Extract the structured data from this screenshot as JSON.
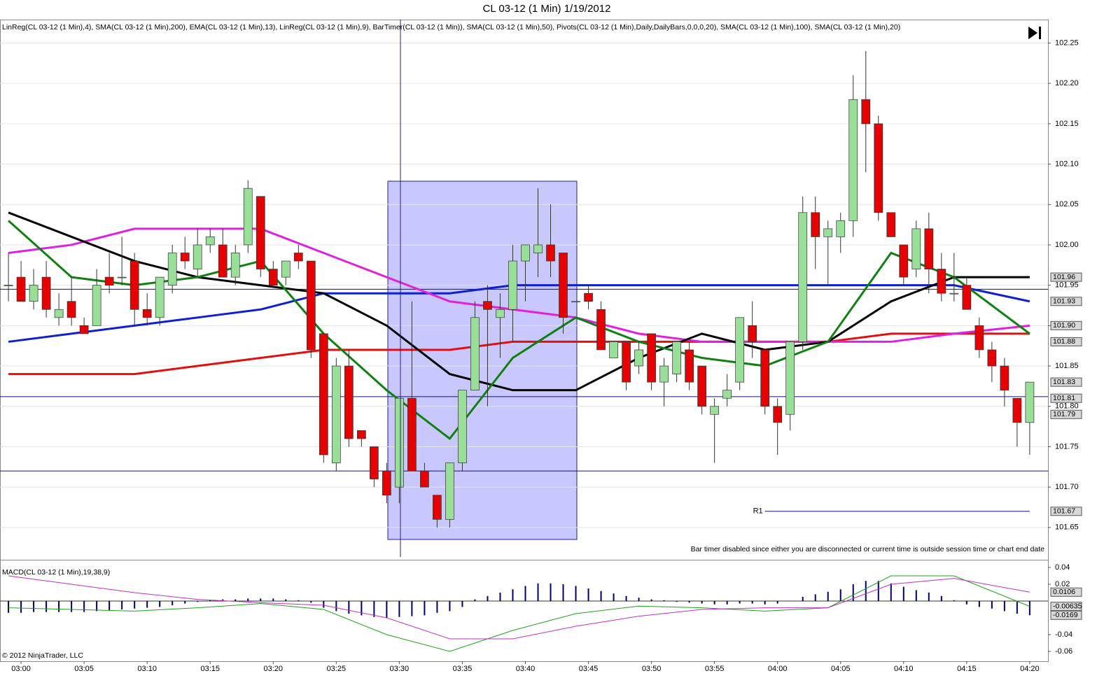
{
  "title": "CL 03-12 (1 Min)  1/19/2012",
  "indicators": "LinReg(CL 03-12 (1 Min),4), SMA(CL 03-12 (1 Min),200), EMA(CL 03-12 (1 Min),13), LinReg(CL 03-12 (1 Min),9), BarTimer(CL 03-12 (1 Min)), SMA(CL 03-12 (1 Min),50), Pivots(CL 03-12 (1 Min),Daily,DailyBars,0,0,0,20), SMA(CL 03-12 (1 Min),100), SMA(CL 03-12 (1 Min),20)",
  "notice": "Bar timer disabled since either you are disconnected or current time is outside session time or chart end date",
  "copyright": "© 2012 NinjaTrader, LLC",
  "chart_data": [
    {
      "type": "candlestick",
      "up_color": "#98e098",
      "down_color": "#e80000",
      "grid": true,
      "xlim": [
        -1.67,
        81.45
      ],
      "ylim": [
        101.61,
        102.279
      ],
      "xticks": [
        {
          "value": 0,
          "label": "03:00"
        },
        {
          "value": 5,
          "label": "03:05"
        },
        {
          "value": 10,
          "label": "03:10"
        },
        {
          "value": 15,
          "label": "03:15"
        },
        {
          "value": 20,
          "label": "03:20"
        },
        {
          "value": 25,
          "label": "03:25"
        },
        {
          "value": 30,
          "label": "03:30"
        },
        {
          "value": 35,
          "label": "03:35"
        },
        {
          "value": 40,
          "label": "03:40"
        },
        {
          "value": 45,
          "label": "03:45"
        },
        {
          "value": 50,
          "label": "03:50"
        },
        {
          "value": 55,
          "label": "03:55"
        },
        {
          "value": 60,
          "label": "04:00"
        },
        {
          "value": 65,
          "label": "04:05"
        },
        {
          "value": 70,
          "label": "04:10"
        },
        {
          "value": 75,
          "label": "04:15"
        },
        {
          "value": 80,
          "label": "04:20"
        }
      ],
      "yticks": [
        101.65,
        {
          "value": 101.7,
          "label": "101.70"
        },
        101.75,
        {
          "value": 101.8,
          "label": "101.80"
        },
        101.85,
        {
          "value": 101.9,
          "label": "101.90"
        },
        101.95,
        {
          "value": 102,
          "label": "102.00"
        },
        102.05,
        {
          "value": 102.1,
          "label": "102.10"
        },
        102.15,
        {
          "value": 102.2,
          "label": "102.20"
        },
        102.25
      ],
      "x": [
        -1,
        0,
        1,
        2,
        3,
        4,
        5,
        6,
        7,
        8,
        9,
        10,
        11,
        12,
        13,
        14,
        15,
        16,
        17,
        18,
        19,
        20,
        21,
        22,
        23,
        24,
        25,
        26,
        27,
        28,
        29,
        30,
        31,
        32,
        33,
        34,
        35,
        36,
        37,
        38,
        39,
        40,
        41,
        42,
        43,
        44,
        45,
        46,
        47,
        48,
        49,
        50,
        51,
        52,
        53,
        54,
        55,
        56,
        57,
        58,
        59,
        60,
        61,
        62,
        63,
        64,
        65,
        66,
        67,
        68,
        69,
        70,
        71,
        72,
        73,
        74,
        75,
        76,
        77,
        78,
        79,
        80
      ],
      "open": [
        101.95,
        101.96,
        101.93,
        101.96,
        101.91,
        101.93,
        101.9,
        101.9,
        101.96,
        101.96,
        101.98,
        101.92,
        101.91,
        101.95,
        101.99,
        101.97,
        102.0,
        102.0,
        101.96,
        102.0,
        102.06,
        101.97,
        101.96,
        101.99,
        101.98,
        101.89,
        101.73,
        101.85,
        101.77,
        101.75,
        101.72,
        101.7,
        101.81,
        101.72,
        101.69,
        101.66,
        101.73,
        101.82,
        101.93,
        101.91,
        101.92,
        101.98,
        101.99,
        102.0,
        101.99,
        101.93,
        101.94,
        101.92,
        101.86,
        101.88,
        101.85,
        101.89,
        101.83,
        101.84,
        101.87,
        101.85,
        101.79,
        101.81,
        101.83,
        101.9,
        101.87,
        101.8,
        101.79,
        101.88,
        102.04,
        102.01,
        102.01,
        102.03,
        102.18,
        102.15,
        102.04,
        102.0,
        101.97,
        102.02,
        101.97,
        101.94,
        101.95,
        101.9,
        101.87,
        101.85,
        101.81,
        101.78
      ],
      "high": [
        101.99,
        101.98,
        101.97,
        101.98,
        101.94,
        101.96,
        101.91,
        101.97,
        101.99,
        102.01,
        101.99,
        101.94,
        101.96,
        102.0,
        102.01,
        102.02,
        102.02,
        102.02,
        102.0,
        102.08,
        102.06,
        101.98,
        101.98,
        102.0,
        101.98,
        101.89,
        101.86,
        101.87,
        101.77,
        101.75,
        101.73,
        101.81,
        101.93,
        101.73,
        101.69,
        101.73,
        101.82,
        101.93,
        101.95,
        101.94,
        102.0,
        102.0,
        102.07,
        102.05,
        101.99,
        101.93,
        101.95,
        101.93,
        101.88,
        101.88,
        101.88,
        101.89,
        101.86,
        101.88,
        101.88,
        101.85,
        101.81,
        101.84,
        101.91,
        101.93,
        101.87,
        101.81,
        101.88,
        102.06,
        102.06,
        102.03,
        102.04,
        102.21,
        102.24,
        102.16,
        102.04,
        102.0,
        102.03,
        102.04,
        101.99,
        101.99,
        101.96,
        101.91,
        101.88,
        101.86,
        101.81,
        101.83
      ],
      "low": [
        101.93,
        101.93,
        101.92,
        101.91,
        101.9,
        101.9,
        101.89,
        101.9,
        101.94,
        101.95,
        101.9,
        101.9,
        101.9,
        101.94,
        101.97,
        101.96,
        101.99,
        101.96,
        101.95,
        101.99,
        101.96,
        101.95,
        101.95,
        101.97,
        101.86,
        101.73,
        101.72,
        101.75,
        101.75,
        101.7,
        101.68,
        101.68,
        101.72,
        101.7,
        101.65,
        101.65,
        101.72,
        101.82,
        101.8,
        101.86,
        101.88,
        101.93,
        101.96,
        101.96,
        101.89,
        101.93,
        101.92,
        101.87,
        101.86,
        101.82,
        101.84,
        101.82,
        101.8,
        101.83,
        101.82,
        101.79,
        101.73,
        101.8,
        101.82,
        101.86,
        101.79,
        101.74,
        101.77,
        101.87,
        101.97,
        101.95,
        101.99,
        102.01,
        102.09,
        102.03,
        102.01,
        101.95,
        101.96,
        101.94,
        101.93,
        101.93,
        101.92,
        101.86,
        101.83,
        101.8,
        101.75,
        101.74
      ],
      "close": [
        101.95,
        101.93,
        101.95,
        101.92,
        101.92,
        101.91,
        101.89,
        101.95,
        101.95,
        101.96,
        101.92,
        101.91,
        101.96,
        101.99,
        101.98,
        102.0,
        102.01,
        101.96,
        101.99,
        102.07,
        101.97,
        101.95,
        101.98,
        101.98,
        101.87,
        101.74,
        101.85,
        101.76,
        101.76,
        101.71,
        101.69,
        101.81,
        101.72,
        101.7,
        101.66,
        101.73,
        101.82,
        101.91,
        101.92,
        101.92,
        101.98,
        102.0,
        102.0,
        101.98,
        101.91,
        101.93,
        101.93,
        101.87,
        101.88,
        101.83,
        101.87,
        101.83,
        101.85,
        101.88,
        101.83,
        101.8,
        101.8,
        101.82,
        101.91,
        101.88,
        101.8,
        101.78,
        101.88,
        102.04,
        102.01,
        102.02,
        102.03,
        102.18,
        102.15,
        102.04,
        102.01,
        101.96,
        102.02,
        101.97,
        101.94,
        101.94,
        101.92,
        101.87,
        101.85,
        101.82,
        101.78,
        101.83
      ],
      "lines": [
        {
          "color": "#e01010",
          "x": [
            -1,
            4,
            9,
            14,
            19,
            24,
            29,
            34,
            39,
            44,
            49,
            54,
            59,
            64,
            69,
            74,
            80
          ],
          "values": [
            101.84,
            101.84,
            101.84,
            101.85,
            101.86,
            101.87,
            101.87,
            101.87,
            101.88,
            101.88,
            101.88,
            101.88,
            101.88,
            101.88,
            101.89,
            101.89,
            101.89
          ]
        },
        {
          "color": "#1020d0",
          "x": [
            -1,
            4,
            9,
            14,
            19,
            24,
            29,
            34,
            39,
            44,
            49,
            54,
            59,
            64,
            69,
            74,
            80
          ],
          "values": [
            101.88,
            101.89,
            101.9,
            101.91,
            101.92,
            101.94,
            101.94,
            101.94,
            101.95,
            101.95,
            101.95,
            101.95,
            101.95,
            101.95,
            101.95,
            101.95,
            101.93
          ]
        },
        {
          "color": "#e020e0",
          "x": [
            -1,
            4,
            9,
            14,
            19,
            24,
            29,
            34,
            39,
            44,
            49,
            54,
            59,
            64,
            69,
            74,
            80
          ],
          "values": [
            101.99,
            102.0,
            102.02,
            102.02,
            102.02,
            101.99,
            101.96,
            101.93,
            101.92,
            101.91,
            101.89,
            101.88,
            101.88,
            101.88,
            101.88,
            101.89,
            101.9
          ]
        },
        {
          "color": "#000000",
          "x": [
            -1,
            4,
            9,
            14,
            19,
            24,
            29,
            34,
            39,
            44,
            49,
            54,
            59,
            64,
            69,
            74,
            80
          ],
          "values": [
            102.04,
            102.01,
            101.98,
            101.96,
            101.95,
            101.94,
            101.9,
            101.84,
            101.82,
            101.82,
            101.86,
            101.89,
            101.87,
            101.88,
            101.93,
            101.96,
            101.96
          ]
        },
        {
          "color": "#108010",
          "x": [
            -1,
            4,
            9,
            14,
            19,
            24,
            29,
            34,
            39,
            44,
            49,
            54,
            59,
            64,
            69,
            74,
            80
          ],
          "values": [
            102.03,
            101.96,
            101.95,
            101.96,
            101.98,
            101.89,
            101.82,
            101.76,
            101.86,
            101.91,
            101.88,
            101.86,
            101.85,
            101.88,
            101.99,
            101.96,
            101.89
          ]
        }
      ],
      "hlines": [
        101.945,
        101.812,
        101.72
      ],
      "pivot": {
        "label": "R1",
        "value": 101.67,
        "from": 59,
        "to": 80
      },
      "price_markers": [
        101.96,
        101.93,
        {
          "value": 101.9,
          "label": "101.90"
        },
        101.88,
        101.83,
        101.81,
        101.79,
        101.67
      ]
    },
    {
      "type": "macd",
      "title": "MACD(CL 03-12 (1 Min),19,38,9)",
      "color": "#000060",
      "ylim": [
        -0.0717,
        0.0492
      ],
      "yticks": [
        0.04,
        0.02,
        -0.04,
        -0.06
      ],
      "x": [
        -1,
        0,
        1,
        2,
        3,
        4,
        5,
        6,
        7,
        8,
        9,
        10,
        11,
        12,
        13,
        14,
        15,
        16,
        17,
        18,
        19,
        20,
        21,
        22,
        23,
        24,
        25,
        26,
        27,
        28,
        29,
        30,
        31,
        32,
        33,
        34,
        35,
        36,
        37,
        38,
        39,
        40,
        41,
        42,
        43,
        44,
        45,
        46,
        47,
        48,
        49,
        50,
        51,
        52,
        53,
        54,
        55,
        56,
        57,
        58,
        59,
        60,
        61,
        62,
        63,
        64,
        65,
        66,
        67,
        68,
        69,
        70,
        71,
        72,
        73,
        74,
        75,
        76,
        77,
        78,
        79,
        80
      ],
      "values": [
        -0.014,
        -0.014,
        -0.013,
        -0.013,
        -0.013,
        -0.013,
        -0.013,
        -0.012,
        -0.011,
        -0.01,
        -0.009,
        -0.008,
        -0.007,
        -0.005,
        -0.003,
        -0.001,
        0.001,
        0.002,
        0.002,
        0.003,
        0.003,
        0.003,
        0.002,
        0.001,
        -0.002,
        -0.008,
        -0.012,
        -0.015,
        -0.017,
        -0.019,
        -0.02,
        -0.019,
        -0.018,
        -0.017,
        -0.014,
        -0.012,
        -0.007,
        0.002,
        0.006,
        0.01,
        0.014,
        0.018,
        0.021,
        0.021,
        0.02,
        0.018,
        0.015,
        0.012,
        0.009,
        0.006,
        0.004,
        0.002,
        0.001,
        -0.001,
        -0.002,
        -0.003,
        -0.004,
        -0.004,
        -0.003,
        -0.003,
        -0.004,
        -0.003,
        0.0,
        0.005,
        0.008,
        0.011,
        0.014,
        0.02,
        0.024,
        0.024,
        0.021,
        0.017,
        0.013,
        0.01,
        0.006,
        0.001,
        -0.004,
        -0.007,
        -0.009,
        -0.012,
        -0.015,
        -0.0169
      ],
      "lines": [
        {
          "color": "#20a020",
          "x": [
            -1,
            4,
            9,
            14,
            19,
            24,
            29,
            34,
            39,
            44,
            49,
            54,
            59,
            64,
            69,
            74,
            80
          ],
          "values": [
            -0.008,
            -0.01,
            -0.012,
            -0.008,
            -0.003,
            -0.01,
            -0.04,
            -0.06,
            -0.035,
            -0.015,
            -0.006,
            -0.008,
            -0.012,
            -0.008,
            0.03,
            0.03,
            -0.00635
          ]
        },
        {
          "color": "#c030c0",
          "x": [
            -1,
            4,
            9,
            14,
            19,
            24,
            29,
            34,
            39,
            44,
            49,
            54,
            59,
            64,
            69,
            74,
            80
          ],
          "values": [
            0.03,
            0.02,
            0.01,
            0.002,
            -0.002,
            -0.005,
            -0.02,
            -0.045,
            -0.045,
            -0.03,
            -0.018,
            -0.01,
            -0.008,
            -0.008,
            0.02,
            0.027,
            0.0106
          ]
        }
      ],
      "price_markers": [
        0.0106,
        -0.00635,
        -0.0169
      ]
    }
  ]
}
